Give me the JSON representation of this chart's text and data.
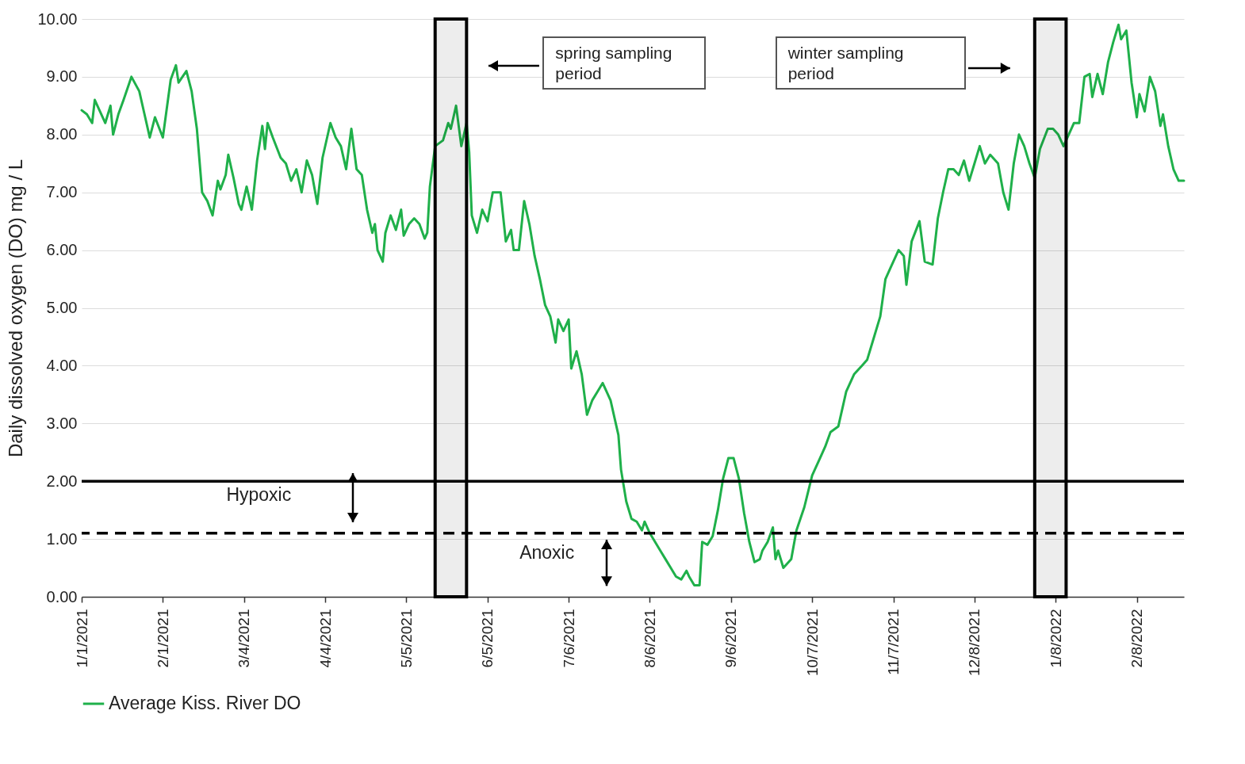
{
  "chart_data": {
    "type": "line",
    "ylabel": "Daily dissolved oxygen (DO) mg / L",
    "xlim": [
      "2021-01-01",
      "2022-02-26"
    ],
    "ylim": [
      0,
      10
    ],
    "xticks": [
      {
        "value": "2021-01-01",
        "label": "1/1/2021"
      },
      {
        "value": "2021-02-01",
        "label": "2/1/2021"
      },
      {
        "value": "2021-03-04",
        "label": "3/4/2021"
      },
      {
        "value": "2021-04-04",
        "label": "4/4/2021"
      },
      {
        "value": "2021-05-05",
        "label": "5/5/2021"
      },
      {
        "value": "2021-06-05",
        "label": "6/5/2021"
      },
      {
        "value": "2021-07-06",
        "label": "7/6/2021"
      },
      {
        "value": "2021-08-06",
        "label": "8/6/2021"
      },
      {
        "value": "2021-09-06",
        "label": "9/6/2021"
      },
      {
        "value": "2021-10-07",
        "label": "10/7/2021"
      },
      {
        "value": "2021-11-07",
        "label": "11/7/2021"
      },
      {
        "value": "2021-12-08",
        "label": "12/8/2021"
      },
      {
        "value": "2022-01-08",
        "label": "1/8/2022"
      },
      {
        "value": "2022-02-08",
        "label": "2/8/2022"
      }
    ],
    "yticks": [
      {
        "value": 0,
        "label": "0.00"
      },
      {
        "value": 1,
        "label": "1.00"
      },
      {
        "value": 2,
        "label": "2.00"
      },
      {
        "value": 3,
        "label": "3.00"
      },
      {
        "value": 4,
        "label": "4.00"
      },
      {
        "value": 5,
        "label": "5.00"
      },
      {
        "value": 6,
        "label": "6.00"
      },
      {
        "value": 7,
        "label": "7.00"
      },
      {
        "value": 8,
        "label": "8.00"
      },
      {
        "value": 9,
        "label": "9.00"
      },
      {
        "value": 10,
        "label": "10.00"
      }
    ],
    "grid": "y",
    "legend": "bottom",
    "x": [
      "2021-01-01",
      "2021-01-03",
      "2021-01-05",
      "2021-01-06",
      "2021-01-08",
      "2021-01-10",
      "2021-01-12",
      "2021-01-13",
      "2021-01-15",
      "2021-01-17",
      "2021-01-20",
      "2021-01-23",
      "2021-01-25",
      "2021-01-27",
      "2021-01-29",
      "2021-02-01",
      "2021-02-04",
      "2021-02-06",
      "2021-02-07",
      "2021-02-10",
      "2021-02-12",
      "2021-02-14",
      "2021-02-16",
      "2021-02-18",
      "2021-02-20",
      "2021-02-22",
      "2021-02-23",
      "2021-02-25",
      "2021-02-26",
      "2021-02-28",
      "2021-03-02",
      "2021-03-03",
      "2021-03-05",
      "2021-03-07",
      "2021-03-09",
      "2021-03-11",
      "2021-03-12",
      "2021-03-13",
      "2021-03-15",
      "2021-03-18",
      "2021-03-20",
      "2021-03-22",
      "2021-03-24",
      "2021-03-26",
      "2021-03-28",
      "2021-03-30",
      "2021-04-01",
      "2021-04-03",
      "2021-04-06",
      "2021-04-08",
      "2021-04-10",
      "2021-04-12",
      "2021-04-14",
      "2021-04-16",
      "2021-04-18",
      "2021-04-20",
      "2021-04-22",
      "2021-04-23",
      "2021-04-24",
      "2021-04-26",
      "2021-04-27",
      "2021-04-29",
      "2021-05-01",
      "2021-05-03",
      "2021-05-04",
      "2021-05-06",
      "2021-05-08",
      "2021-05-10",
      "2021-05-12",
      "2021-05-13",
      "2021-05-14",
      "2021-05-16",
      "2021-05-19",
      "2021-05-21",
      "2021-05-22",
      "2021-05-24",
      "2021-05-26",
      "2021-05-28",
      "2021-05-29",
      "2021-05-30",
      "2021-06-01",
      "2021-06-03",
      "2021-06-05",
      "2021-06-07",
      "2021-06-10",
      "2021-06-12",
      "2021-06-14",
      "2021-06-15",
      "2021-06-17",
      "2021-06-19",
      "2021-06-21",
      "2021-06-23",
      "2021-06-25",
      "2021-06-27",
      "2021-06-29",
      "2021-07-01",
      "2021-07-02",
      "2021-07-04",
      "2021-07-06",
      "2021-07-07",
      "2021-07-09",
      "2021-07-11",
      "2021-07-13",
      "2021-07-15",
      "2021-07-17",
      "2021-07-19",
      "2021-07-22",
      "2021-07-24",
      "2021-07-25",
      "2021-07-26",
      "2021-07-28",
      "2021-07-30",
      "2021-08-01",
      "2021-08-03",
      "2021-08-04",
      "2021-08-06",
      "2021-08-08",
      "2021-08-10",
      "2021-08-12",
      "2021-08-14",
      "2021-08-16",
      "2021-08-18",
      "2021-08-20",
      "2021-08-21",
      "2021-08-23",
      "2021-08-25",
      "2021-08-26",
      "2021-08-28",
      "2021-08-30",
      "2021-09-01",
      "2021-09-03",
      "2021-09-05",
      "2021-09-07",
      "2021-09-09",
      "2021-09-11",
      "2021-09-13",
      "2021-09-15",
      "2021-09-17",
      "2021-09-18",
      "2021-09-20",
      "2021-09-22",
      "2021-09-23",
      "2021-09-24",
      "2021-09-26",
      "2021-09-28",
      "2021-09-29",
      "2021-10-01",
      "2021-10-04",
      "2021-10-07",
      "2021-10-10",
      "2021-10-12",
      "2021-10-14",
      "2021-10-17",
      "2021-10-20",
      "2021-10-23",
      "2021-10-26",
      "2021-10-28",
      "2021-10-30",
      "2021-11-02",
      "2021-11-04",
      "2021-11-06",
      "2021-11-09",
      "2021-11-11",
      "2021-11-12",
      "2021-11-14",
      "2021-11-17",
      "2021-11-18",
      "2021-11-19",
      "2021-11-22",
      "2021-11-24",
      "2021-11-26",
      "2021-11-28",
      "2021-11-30",
      "2021-12-02",
      "2021-12-04",
      "2021-12-06",
      "2021-12-08",
      "2021-12-10",
      "2021-12-12",
      "2021-12-14",
      "2021-12-17",
      "2021-12-19",
      "2021-12-21",
      "2021-12-23",
      "2021-12-25",
      "2021-12-27",
      "2021-12-29",
      "2021-12-31",
      "2022-01-02",
      "2022-01-05",
      "2022-01-07",
      "2022-01-09",
      "2022-01-11",
      "2022-01-13",
      "2022-01-15",
      "2022-01-17",
      "2022-01-19",
      "2022-01-21",
      "2022-01-22",
      "2022-01-24",
      "2022-01-26",
      "2022-01-28",
      "2022-01-30",
      "2022-02-01",
      "2022-02-02",
      "2022-02-04",
      "2022-02-06",
      "2022-02-08",
      "2022-02-09",
      "2022-02-11",
      "2022-02-13",
      "2022-02-15",
      "2022-02-17",
      "2022-02-18",
      "2022-02-20",
      "2022-02-22",
      "2022-02-24",
      "2022-02-26"
    ],
    "series": [
      {
        "name": "Average Kiss. River DO",
        "color": "#1fb04a",
        "values": [
          8.42,
          8.35,
          8.2,
          8.6,
          8.4,
          8.2,
          8.5,
          8.0,
          8.35,
          8.6,
          9.0,
          8.75,
          8.35,
          7.95,
          8.3,
          7.95,
          8.95,
          9.2,
          8.9,
          9.1,
          8.75,
          8.1,
          7.0,
          6.85,
          6.6,
          7.2,
          7.05,
          7.3,
          7.65,
          7.25,
          6.8,
          6.7,
          7.1,
          6.7,
          7.55,
          8.15,
          7.75,
          8.2,
          7.95,
          7.6,
          7.5,
          7.2,
          7.4,
          7.0,
          7.55,
          7.3,
          6.8,
          7.6,
          8.2,
          7.95,
          7.8,
          7.4,
          8.1,
          7.4,
          7.3,
          6.7,
          6.3,
          6.45,
          6.0,
          5.8,
          6.3,
          6.6,
          6.35,
          6.7,
          6.25,
          6.45,
          6.55,
          6.45,
          6.2,
          6.3,
          7.1,
          7.8,
          7.9,
          8.2,
          8.1,
          8.5,
          7.8,
          8.2,
          7.7,
          6.6,
          6.3,
          6.7,
          6.5,
          7.0,
          7.0,
          6.15,
          6.35,
          6.0,
          6.0,
          6.85,
          6.45,
          5.9,
          5.5,
          5.05,
          4.85,
          4.4,
          4.8,
          4.6,
          4.8,
          3.95,
          4.25,
          3.85,
          3.15,
          3.4,
          3.55,
          3.7,
          3.4,
          3.0,
          2.8,
          2.2,
          1.65,
          1.35,
          1.3,
          1.15,
          1.3,
          1.1,
          0.95,
          0.8,
          0.65,
          0.5,
          0.35,
          0.3,
          0.45,
          0.35,
          0.2,
          0.2,
          0.95,
          0.9,
          1.05,
          1.5,
          2.05,
          2.4,
          2.4,
          2.05,
          1.45,
          0.95,
          0.6,
          0.65,
          0.8,
          0.95,
          1.2,
          0.65,
          0.8,
          0.5,
          0.6,
          0.65,
          1.15,
          1.55,
          2.1,
          2.4,
          2.6,
          2.85,
          2.95,
          3.55,
          3.85,
          4.0,
          4.1,
          4.4,
          4.85,
          5.5,
          5.7,
          6.0,
          5.9,
          5.4,
          6.15,
          6.5,
          6.15,
          5.8,
          5.75,
          6.55,
          7.0,
          7.4,
          7.4,
          7.3,
          7.55,
          7.2,
          7.5,
          7.8,
          7.5,
          7.65,
          7.5,
          7.0,
          6.7,
          7.5,
          8.0,
          7.8,
          7.5,
          7.25,
          7.75,
          8.1,
          8.1,
          8.0,
          7.8,
          8.0,
          8.2,
          8.2,
          9.0,
          9.05,
          8.65,
          9.05,
          8.7,
          9.25,
          9.6,
          9.9,
          9.65,
          9.8,
          8.9,
          8.3,
          8.7,
          8.4,
          9.0,
          8.75,
          8.15,
          8.35,
          7.8,
          7.4,
          7.2,
          7.2
        ]
      }
    ],
    "ref_lines": [
      {
        "axis": "y",
        "value": 2,
        "color": "#000000",
        "line_style": "solid"
      },
      {
        "axis": "y",
        "value": 1.1,
        "color": "#000000",
        "line_style": "dashed"
      }
    ],
    "bands": [
      {
        "axis": "x",
        "from": "2021-05-16",
        "to": "2021-05-28",
        "color": "#000000"
      },
      {
        "axis": "x",
        "from": "2021-12-31",
        "to": "2022-01-12",
        "color": "#000000"
      }
    ],
    "annotations": [
      "spring sampling period",
      "winter sampling period",
      "Hypoxic",
      "Anoxic"
    ]
  }
}
